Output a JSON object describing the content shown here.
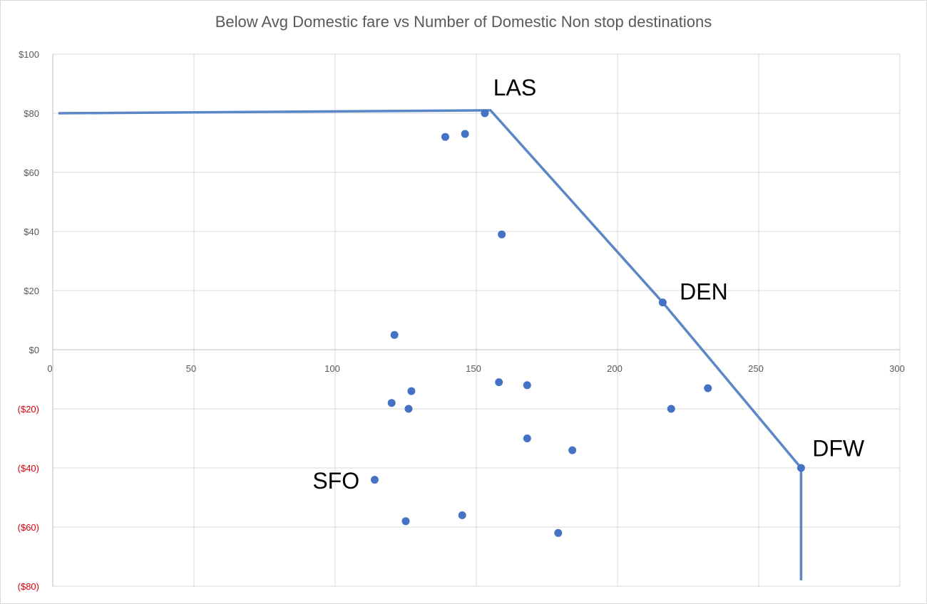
{
  "chart_data": {
    "type": "scatter",
    "title": "Below Avg Domestic fare vs Number of Domestic Non stop destinations",
    "xlabel": "",
    "ylabel": "",
    "xlim": [
      0,
      300
    ],
    "ylim": [
      -80,
      100
    ],
    "x_ticks": [
      0,
      50,
      100,
      150,
      200,
      250,
      300
    ],
    "x_tick_labels": [
      "0",
      "50",
      "100",
      "150",
      "200",
      "250",
      "300"
    ],
    "y_ticks": [
      100,
      80,
      60,
      40,
      20,
      0,
      -20,
      -40,
      -60,
      -80
    ],
    "y_tick_labels": [
      "$100",
      "$80",
      "$60",
      "$40",
      "$20",
      "$0",
      "($20)",
      "($40)",
      "($60)",
      "($80)"
    ],
    "grid": true,
    "legend": "none",
    "colors": {
      "points": "#4472c4",
      "line": "#5b87c6",
      "negative_tick": "#d9000d",
      "grid": "#d9d9d9"
    },
    "points": [
      {
        "x": 153,
        "y": 80
      },
      {
        "x": 139,
        "y": 72
      },
      {
        "x": 146,
        "y": 73
      },
      {
        "x": 159,
        "y": 39
      },
      {
        "x": 216,
        "y": 16
      },
      {
        "x": 121,
        "y": 5
      },
      {
        "x": 158,
        "y": -11
      },
      {
        "x": 168,
        "y": -12
      },
      {
        "x": 127,
        "y": -14
      },
      {
        "x": 120,
        "y": -18
      },
      {
        "x": 126,
        "y": -20
      },
      {
        "x": 232,
        "y": -13
      },
      {
        "x": 219,
        "y": -20
      },
      {
        "x": 168,
        "y": -30
      },
      {
        "x": 184,
        "y": -34
      },
      {
        "x": 265,
        "y": -40
      },
      {
        "x": 114,
        "y": -44
      },
      {
        "x": 145,
        "y": -56
      },
      {
        "x": 125,
        "y": -58
      },
      {
        "x": 179,
        "y": -62
      }
    ],
    "frontier_line": [
      {
        "x": 2,
        "y": 80
      },
      {
        "x": 155,
        "y": 81
      },
      {
        "x": 216,
        "y": 16
      },
      {
        "x": 265,
        "y": -40
      },
      {
        "x": 265,
        "y": -78
      }
    ],
    "annotations": [
      {
        "text": "LAS",
        "x": 156,
        "y": 86
      },
      {
        "text": "DEN",
        "x": 222,
        "y": 17
      },
      {
        "text": "DFW",
        "x": 269,
        "y": -36
      },
      {
        "text": "SFO",
        "x": 92,
        "y": -47
      }
    ]
  }
}
